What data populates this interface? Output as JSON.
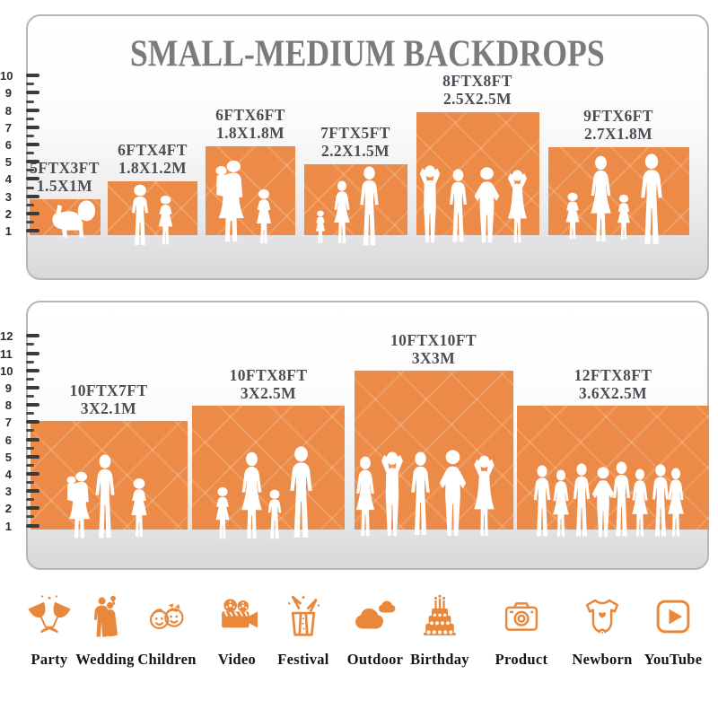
{
  "title": "SMALL-MEDIUM BACKDROPS",
  "accent_color": "#EC8B47",
  "title_color": "#7B7B7B",
  "label_color": "#4C4C54",
  "top_chart": {
    "ruler_labels": [
      "10",
      "9",
      "8",
      "7",
      "6",
      "5",
      "4",
      "3",
      "2",
      "1"
    ],
    "bars": [
      {
        "size_ft": "5FTX3FT",
        "size_m": "1.5X1M",
        "width_ft": 5,
        "height_ft": 3
      },
      {
        "size_ft": "6FTX4FT",
        "size_m": "1.8X1.2M",
        "width_ft": 6,
        "height_ft": 4
      },
      {
        "size_ft": "6FTX6FT",
        "size_m": "1.8X1.8M",
        "width_ft": 6,
        "height_ft": 6
      },
      {
        "size_ft": "7FTX5FT",
        "size_m": "2.2X1.5M",
        "width_ft": 7,
        "height_ft": 5
      },
      {
        "size_ft": "8FTX8FT",
        "size_m": "2.5X2.5M",
        "width_ft": 8,
        "height_ft": 8
      },
      {
        "size_ft": "9FTX6FT",
        "size_m": "2.7X1.8M",
        "width_ft": 9,
        "height_ft": 6
      }
    ]
  },
  "bottom_chart": {
    "ruler_labels": [
      "12",
      "11",
      "10",
      "9",
      "8",
      "7",
      "6",
      "5",
      "4",
      "3",
      "2",
      "1"
    ],
    "bars": [
      {
        "size_ft": "10FTX7FT",
        "size_m": "3X2.1M",
        "width_ft": 10,
        "height_ft": 7
      },
      {
        "size_ft": "10FTX8FT",
        "size_m": "3X2.5M",
        "width_ft": 10,
        "height_ft": 8
      },
      {
        "size_ft": "10FTX10FT",
        "size_m": "3X3M",
        "width_ft": 10,
        "height_ft": 10
      },
      {
        "size_ft": "12FTX8FT",
        "size_m": "3.6X2.5M",
        "width_ft": 12,
        "height_ft": 8
      }
    ]
  },
  "categories": [
    {
      "label": "Party",
      "icon": "party-glasses-icon"
    },
    {
      "label": "Wedding",
      "icon": "wedding-couple-icon"
    },
    {
      "label": "Children",
      "icon": "children-faces-icon"
    },
    {
      "label": "Video",
      "icon": "video-camera-icon"
    },
    {
      "label": "Festival",
      "icon": "gift-box-icon"
    },
    {
      "label": "Outdoor",
      "icon": "clouds-icon"
    },
    {
      "label": "Birthday",
      "icon": "birthday-cake-icon"
    },
    {
      "label": "Product",
      "icon": "photo-camera-icon"
    },
    {
      "label": "Newborn",
      "icon": "baby-onesie-icon"
    },
    {
      "label": "YouTube",
      "icon": "play-button-icon"
    }
  ]
}
